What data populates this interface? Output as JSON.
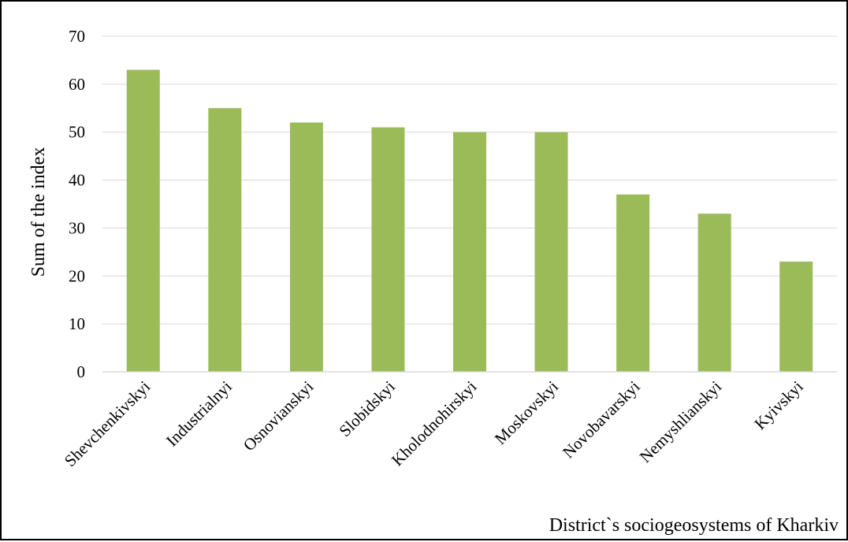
{
  "chart_data": {
    "type": "bar",
    "title": "",
    "xlabel": "District`s sociogeosystems of Kharkiv",
    "ylabel": "Sum of the index",
    "ylim": [
      0,
      70
    ],
    "yticks": [
      0,
      10,
      20,
      30,
      40,
      50,
      60,
      70
    ],
    "grid": true,
    "legend": "none",
    "bar_color": "#9bbb59",
    "grid_color": "#d9d9d9",
    "categories": [
      "Shevchenkivskyi",
      "Industrialnyi",
      "Osnovianskyi",
      "Slobidskyi",
      "Kholodnohirskyi",
      "Moskovskyi",
      "Novobavarskyi",
      "Nemyshlianskyi",
      "Kyivskyi"
    ],
    "values": [
      63,
      55,
      52,
      51,
      50,
      50,
      37,
      33,
      23
    ]
  }
}
